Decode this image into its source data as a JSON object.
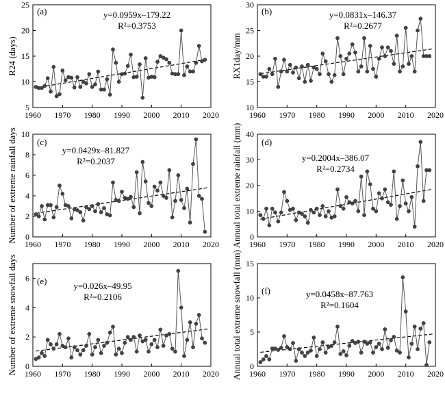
{
  "chart_data": [
    {
      "type": "line",
      "panel_label": "(a)",
      "ylabel": "R24 (days)",
      "xlabel": "",
      "xlim": [
        1960,
        2020
      ],
      "ylim": [
        5,
        25
      ],
      "xticks": [
        1960,
        1970,
        1980,
        1990,
        2000,
        2010,
        2020
      ],
      "yticks": [
        5,
        10,
        15,
        20,
        25
      ],
      "equation": "y=0.0959x–179.22",
      "r2": "R²=0.3753",
      "trend": {
        "slope": 0.0959,
        "intercept": -179.22
      },
      "x": [
        1961,
        1962,
        1963,
        1964,
        1965,
        1966,
        1967,
        1968,
        1969,
        1970,
        1971,
        1972,
        1973,
        1974,
        1975,
        1976,
        1977,
        1978,
        1979,
        1980,
        1981,
        1982,
        1983,
        1984,
        1985,
        1986,
        1987,
        1988,
        1989,
        1990,
        1991,
        1992,
        1993,
        1994,
        1995,
        1996,
        1997,
        1998,
        1999,
        2000,
        2001,
        2002,
        2003,
        2004,
        2005,
        2006,
        2007,
        2008,
        2009,
        2010,
        2011,
        2012,
        2013,
        2014,
        2015,
        2016,
        2017,
        2018
      ],
      "values": [
        9.0,
        8.8,
        8.8,
        9.2,
        10.7,
        8.1,
        12.9,
        7.2,
        7.6,
        12.2,
        10.3,
        10.9,
        10.8,
        8.9,
        10.9,
        9.0,
        10.0,
        9.7,
        11.5,
        9.0,
        9.5,
        12.0,
        8.5,
        8.5,
        10.5,
        7.5,
        16.3,
        13.7,
        10.0,
        11.5,
        11.6,
        13.1,
        15.3,
        10.9,
        11.0,
        13.4,
        6.9,
        14.6,
        10.8,
        11.0,
        10.9,
        13.9,
        15.0,
        14.7,
        14.4,
        13.7,
        11.6,
        11.5,
        11.5,
        20.0,
        11.3,
        13.0,
        12.0,
        12.0,
        13.7,
        17.0,
        14.0,
        14.3
      ]
    },
    {
      "type": "line",
      "panel_label": "(b)",
      "ylabel": "RX1day/mm",
      "xlabel": "",
      "xlim": [
        1960,
        2020
      ],
      "ylim": [
        10,
        30
      ],
      "xticks": [
        1960,
        1970,
        1980,
        1990,
        2000,
        2010,
        2020
      ],
      "yticks": [
        10,
        15,
        20,
        25,
        30
      ],
      "equation": "y=0.0831x–146.37",
      "r2": "R²=0.2677",
      "trend": {
        "slope": 0.0831,
        "intercept": -146.37
      },
      "x": [
        1961,
        1962,
        1963,
        1964,
        1965,
        1966,
        1967,
        1968,
        1969,
        1970,
        1971,
        1972,
        1973,
        1974,
        1975,
        1976,
        1977,
        1978,
        1979,
        1980,
        1981,
        1982,
        1983,
        1984,
        1985,
        1986,
        1987,
        1988,
        1989,
        1990,
        1991,
        1992,
        1993,
        1994,
        1995,
        1996,
        1997,
        1998,
        1999,
        2000,
        2001,
        2002,
        2003,
        2004,
        2005,
        2006,
        2007,
        2008,
        2009,
        2010,
        2011,
        2012,
        2013,
        2014,
        2015,
        2016,
        2017,
        2018
      ],
      "values": [
        16.5,
        16.0,
        16.0,
        17.5,
        16.5,
        19.5,
        14.0,
        17.0,
        19.3,
        17.0,
        18.3,
        16.8,
        17.8,
        15.7,
        18.0,
        15.0,
        18.3,
        15.2,
        17.8,
        17.5,
        16.5,
        20.5,
        19.0,
        16.5,
        15.0,
        16.3,
        23.5,
        20.0,
        16.5,
        19.5,
        20.5,
        22.3,
        20.7,
        17.0,
        18.0,
        23.5,
        17.0,
        22.0,
        17.5,
        16.0,
        19.5,
        21.7,
        20.0,
        21.7,
        21.0,
        18.5,
        24.0,
        17.0,
        18.0,
        25.5,
        18.5,
        20.0,
        17.0,
        25.0,
        27.3,
        20.0,
        20.0,
        20.0
      ]
    },
    {
      "type": "line",
      "panel_label": "(c)",
      "ylabel": "Number of extreme rainfall days",
      "xlabel": "",
      "xlim": [
        1960,
        2020
      ],
      "ylim": [
        0,
        10
      ],
      "xticks": [
        1960,
        1970,
        1980,
        1990,
        2000,
        2010,
        2020
      ],
      "yticks": [
        0,
        2,
        4,
        6,
        8,
        10
      ],
      "equation": "y=0.0429x–81.827",
      "r2": "R²=0.2037",
      "trend": {
        "slope": 0.0429,
        "intercept": -81.827
      },
      "x": [
        1961,
        1962,
        1963,
        1964,
        1965,
        1966,
        1967,
        1968,
        1969,
        1970,
        1971,
        1972,
        1973,
        1974,
        1975,
        1976,
        1977,
        1978,
        1979,
        1980,
        1981,
        1982,
        1983,
        1984,
        1985,
        1986,
        1987,
        1988,
        1989,
        1990,
        1991,
        1992,
        1993,
        1994,
        1995,
        1996,
        1997,
        1998,
        1999,
        2000,
        2001,
        2002,
        2003,
        2004,
        2005,
        2006,
        2007,
        2008,
        2009,
        2010,
        2011,
        2012,
        2013,
        2014,
        2015,
        2016,
        2017,
        2018
      ],
      "values": [
        2.2,
        2.0,
        3.0,
        1.7,
        3.1,
        3.1,
        1.9,
        2.9,
        5.0,
        4.2,
        3.1,
        3.0,
        1.8,
        2.7,
        2.6,
        2.4,
        1.6,
        2.9,
        2.7,
        3.0,
        2.5,
        3.2,
        2.4,
        2.8,
        2.2,
        2.1,
        5.3,
        3.6,
        3.5,
        4.4,
        3.8,
        3.7,
        3.9,
        2.9,
        6.3,
        2.3,
        7.3,
        5.4,
        3.3,
        3.0,
        4.9,
        4.5,
        5.3,
        4.0,
        3.8,
        6.5,
        1.9,
        3.5,
        6.0,
        3.6,
        2.8,
        4.7,
        1.4,
        7.1,
        9.5,
        4.0,
        3.7,
        0.5
      ]
    },
    {
      "type": "line",
      "panel_label": "(d)",
      "ylabel": "Annual total extreme rainfall (mm)",
      "xlabel": "",
      "xlim": [
        1960,
        2020
      ],
      "ylim": [
        0,
        40
      ],
      "xticks": [
        1960,
        1970,
        1980,
        1990,
        2000,
        2010,
        2020
      ],
      "yticks": [
        0,
        10,
        20,
        30,
        40
      ],
      "equation": "y=0.2004x–386.07",
      "r2": "R²=0.2734",
      "trend": {
        "slope": 0.2004,
        "intercept": -386.07
      },
      "x": [
        1961,
        1962,
        1963,
        1964,
        1965,
        1966,
        1967,
        1968,
        1969,
        1970,
        1971,
        1972,
        1973,
        1974,
        1975,
        1976,
        1977,
        1978,
        1979,
        1980,
        1981,
        1982,
        1983,
        1984,
        1985,
        1986,
        1987,
        1988,
        1989,
        1990,
        1991,
        1992,
        1993,
        1994,
        1995,
        1996,
        1997,
        1998,
        1999,
        2000,
        2001,
        2002,
        2003,
        2004,
        2005,
        2006,
        2007,
        2008,
        2009,
        2010,
        2011,
        2012,
        2013,
        2014,
        2015,
        2016,
        2017,
        2018
      ],
      "values": [
        8.5,
        7.0,
        11.0,
        4.5,
        11.0,
        9.5,
        6.0,
        9.5,
        17.5,
        14.0,
        10.5,
        11.0,
        6.5,
        9.5,
        9.0,
        8.0,
        5.5,
        10.5,
        9.5,
        11.0,
        8.5,
        12.0,
        8.0,
        10.0,
        7.5,
        8.0,
        18.5,
        12.0,
        11.0,
        15.5,
        13.5,
        13.0,
        14.0,
        10.0,
        23.5,
        8.5,
        25.5,
        20.5,
        11.0,
        10.0,
        17.0,
        15.0,
        18.5,
        13.5,
        12.5,
        25.5,
        7.0,
        12.0,
        22.0,
        13.0,
        10.0,
        15.5,
        4.0,
        27.5,
        37.0,
        14.0,
        26.0,
        26.0
      ]
    },
    {
      "type": "line",
      "panel_label": "(e)",
      "ylabel": "Number of extreme snowfall days",
      "xlabel": "",
      "xlim": [
        1960,
        2020
      ],
      "ylim": [
        0,
        7
      ],
      "xticks": [
        1960,
        1970,
        1980,
        1990,
        2000,
        2010,
        2020
      ],
      "yticks": [
        0,
        2,
        4,
        6
      ],
      "equation": "y=0.026x–49.95",
      "r2": "R²=0.2106",
      "trend": {
        "slope": 0.026,
        "intercept": -49.95
      },
      "x": [
        1961,
        1962,
        1963,
        1964,
        1965,
        1966,
        1967,
        1968,
        1969,
        1970,
        1971,
        1972,
        1973,
        1974,
        1975,
        1976,
        1977,
        1978,
        1979,
        1980,
        1981,
        1982,
        1983,
        1984,
        1985,
        1986,
        1987,
        1988,
        1989,
        1990,
        1991,
        1992,
        1993,
        1994,
        1995,
        1996,
        1997,
        1998,
        1999,
        2000,
        2001,
        2002,
        2003,
        2004,
        2005,
        2006,
        2007,
        2008,
        2009,
        2010,
        2011,
        2012,
        2013,
        2014,
        2015,
        2016,
        2017,
        2018
      ],
      "values": [
        0.5,
        0.6,
        0.9,
        0.7,
        1.8,
        1.5,
        1.2,
        1.5,
        2.2,
        1.4,
        1.3,
        1.9,
        0.6,
        1.3,
        1.1,
        0.8,
        1.1,
        1.4,
        2.2,
        0.8,
        1.3,
        1.8,
        0.9,
        1.4,
        1.6,
        2.3,
        2.7,
        0.8,
        1.2,
        0.9,
        1.6,
        2.0,
        1.8,
        2.0,
        1.0,
        2.1,
        1.7,
        1.8,
        1.0,
        1.5,
        1.8,
        1.3,
        2.5,
        1.4,
        2.1,
        2.2,
        1.2,
        1.0,
        6.5,
        4.0,
        0.7,
        1.8,
        3.0,
        1.3,
        2.9,
        3.5,
        1.9,
        1.6
      ]
    },
    {
      "type": "line",
      "panel_label": "(f)",
      "ylabel": "Annual total extreme snowfall (mm)",
      "xlabel": "",
      "xlim": [
        1960,
        2020
      ],
      "ylim": [
        0,
        15
      ],
      "xticks": [
        1960,
        1970,
        1980,
        1990,
        2000,
        2010,
        2020
      ],
      "yticks": [
        0,
        5,
        10,
        15
      ],
      "equation": "y=0.0458x–87.763",
      "r2": "R²=0.1604",
      "trend": {
        "slope": 0.0458,
        "intercept": -87.763
      },
      "x": [
        1961,
        1962,
        1963,
        1964,
        1965,
        1966,
        1967,
        1968,
        1969,
        1970,
        1971,
        1972,
        1973,
        1974,
        1975,
        1976,
        1977,
        1978,
        1979,
        1980,
        1981,
        1982,
        1983,
        1984,
        1985,
        1986,
        1987,
        1988,
        1989,
        1990,
        1991,
        1992,
        1993,
        1994,
        1995,
        1996,
        1997,
        1998,
        1999,
        2000,
        2001,
        2002,
        2003,
        2004,
        2005,
        2006,
        2007,
        2008,
        2009,
        2010,
        2011,
        2012,
        2013,
        2014,
        2015,
        2016,
        2017,
        2018
      ],
      "values": [
        0.6,
        1.0,
        1.5,
        1.0,
        2.6,
        2.6,
        2.4,
        2.7,
        4.4,
        2.8,
        2.5,
        3.4,
        0.8,
        2.5,
        2.0,
        1.5,
        2.0,
        2.3,
        4.2,
        1.5,
        2.5,
        3.5,
        2.0,
        2.8,
        3.0,
        3.5,
        5.8,
        1.8,
        2.2,
        1.6,
        3.0,
        3.7,
        3.4,
        3.6,
        2.0,
        3.6,
        3.3,
        3.5,
        2.0,
        2.8,
        3.3,
        2.5,
        5.4,
        2.7,
        3.8,
        4.3,
        2.3,
        2.0,
        13.0,
        8.0,
        1.3,
        3.3,
        5.8,
        2.5,
        5.5,
        6.3,
        0.2,
        3.5
      ]
    }
  ]
}
